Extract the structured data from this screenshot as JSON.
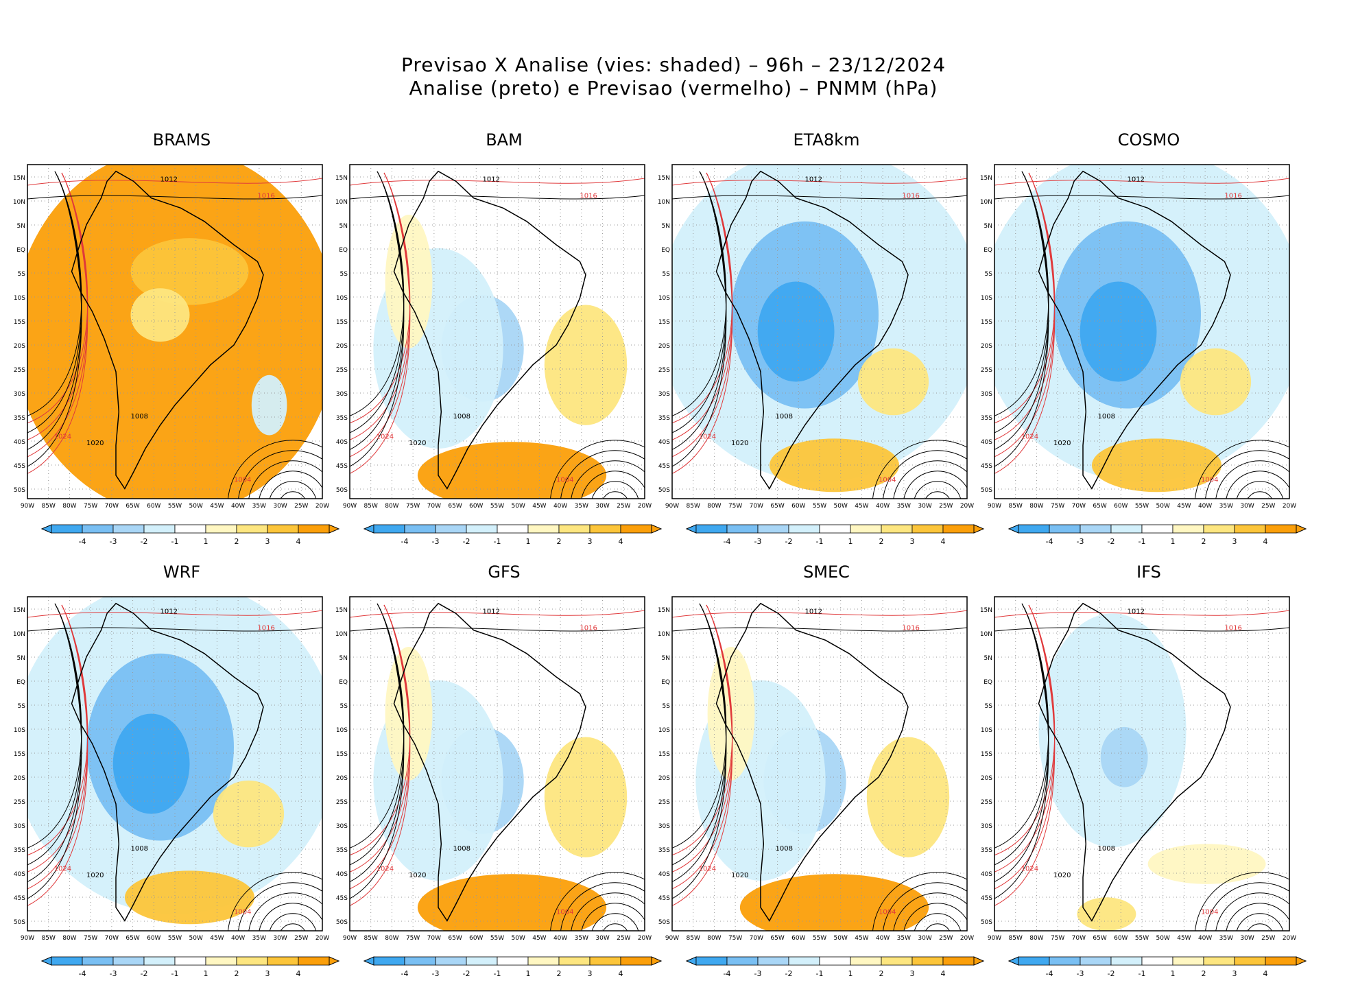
{
  "title": {
    "line1": "Previsao X Analise (vies: shaded) – 96h – 23/12/2024",
    "line2": "Analise (preto) e Previsao (vermelho) – PNMM (hPa)"
  },
  "colors": {
    "neg4": "#3fa8f0",
    "neg3": "#79bff3",
    "neg2": "#a9d6f6",
    "neg1": "#d3f0fb",
    "pos1": "#fff7c2",
    "pos2": "#fde680",
    "pos3": "#fcc53a",
    "pos4": "#fb9f0a",
    "analysis": "#000000",
    "forecast": "#e0393b"
  },
  "axes": {
    "lat_labels": [
      "15N",
      "10N",
      "5N",
      "EQ",
      "5S",
      "10S",
      "15S",
      "20S",
      "25S",
      "30S",
      "35S",
      "40S",
      "45S",
      "50S"
    ],
    "lon_labels": [
      "90W",
      "85W",
      "80W",
      "75W",
      "70W",
      "65W",
      "60W",
      "55W",
      "50W",
      "45W",
      "40W",
      "35W",
      "30W",
      "25W",
      "20W"
    ]
  },
  "colorbar_labels": [
    "-4",
    "-3",
    "-2",
    "-1",
    "1",
    "2",
    "3",
    "4"
  ],
  "models": [
    {
      "name": "BRAMS",
      "bias": "warm"
    },
    {
      "name": "BAM",
      "bias": "mixed"
    },
    {
      "name": "ETA8km",
      "bias": "cold"
    },
    {
      "name": "COSMO",
      "bias": "cold"
    },
    {
      "name": "WRF",
      "bias": "cold"
    },
    {
      "name": "GFS",
      "bias": "mixed"
    },
    {
      "name": "SMEC",
      "bias": "mixed"
    },
    {
      "name": "IFS",
      "bias": "weak"
    }
  ],
  "isobar_labels": [
    "1012",
    "1016",
    "1020",
    "1024",
    "1008",
    "1004"
  ]
}
